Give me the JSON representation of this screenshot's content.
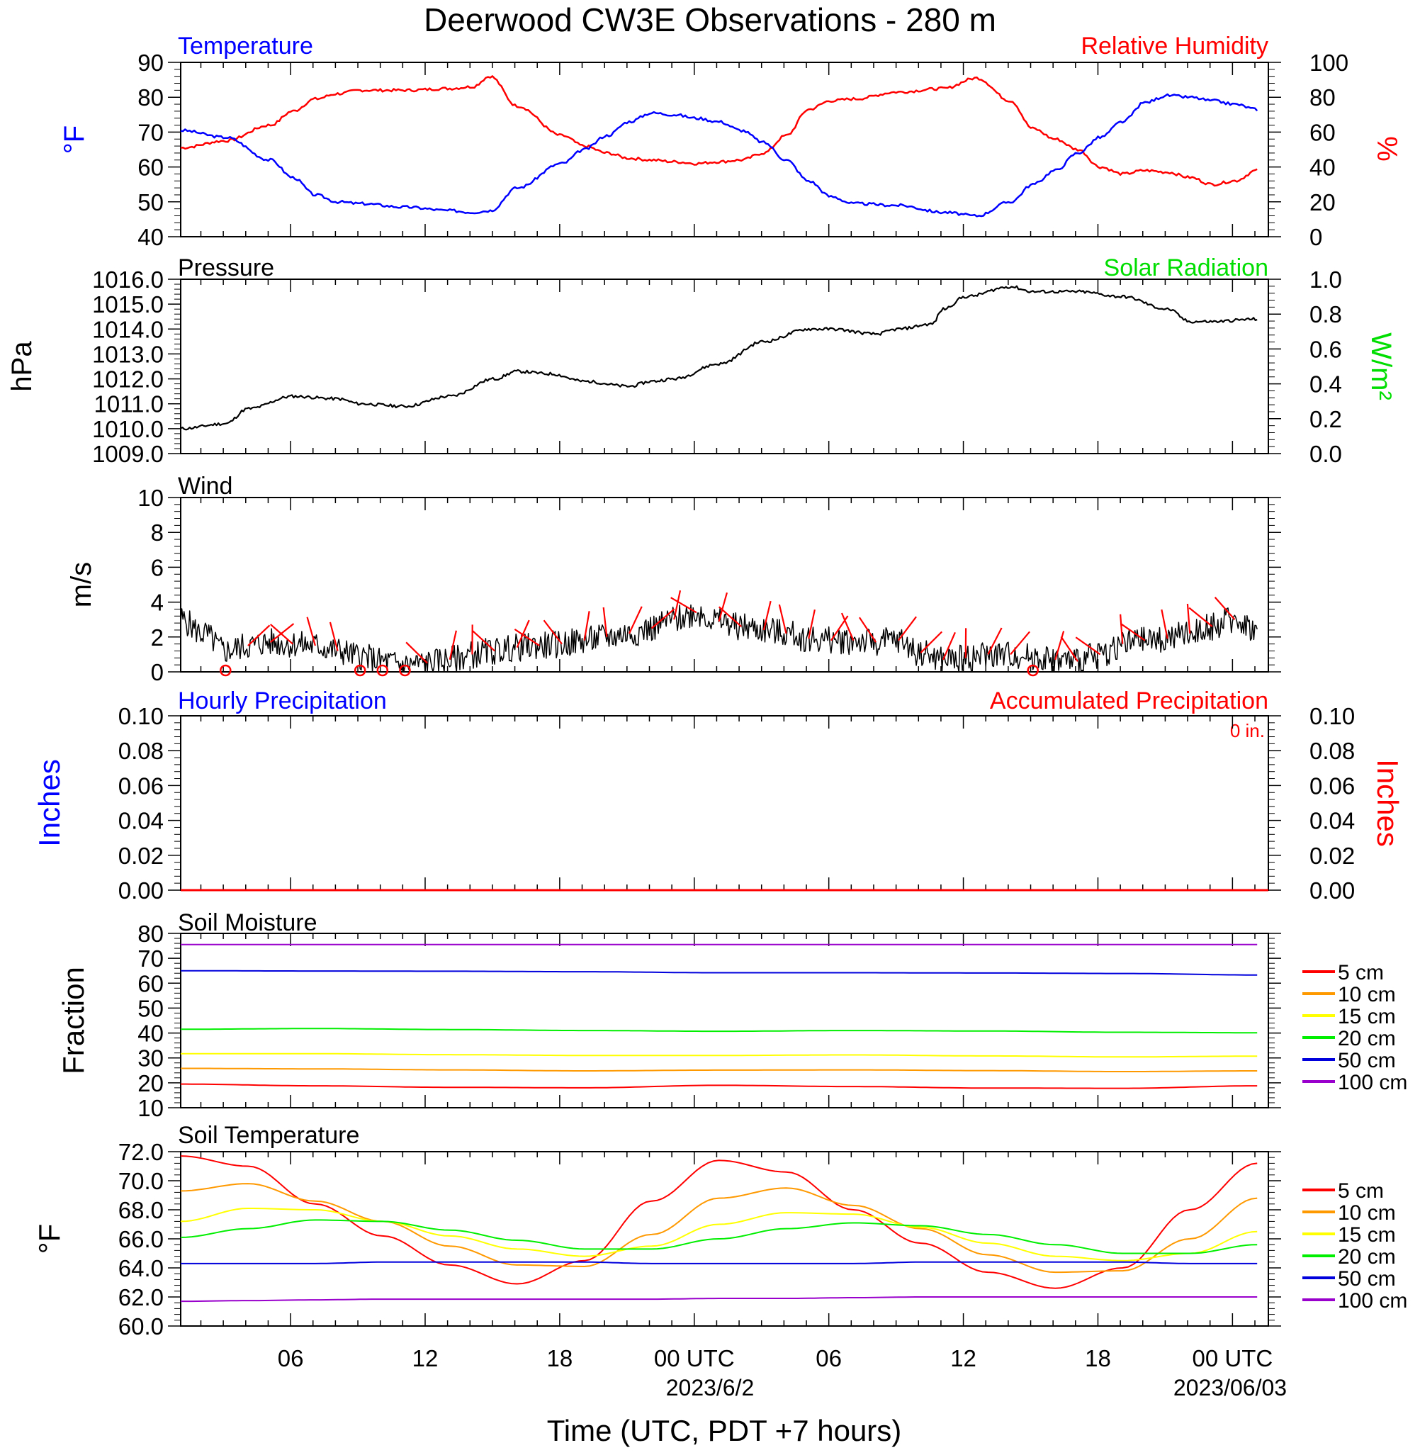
{
  "page": {
    "title": "Deerwood CW3E Observations - 280 m",
    "xlabel": "Time (UTC, PDT +7 hours)",
    "x_ticks": [
      "06",
      "12",
      "18",
      "00 UTC",
      "06",
      "12",
      "18",
      "00 UTC"
    ],
    "date_labels": [
      "2023/6/2",
      "2023/06/03"
    ]
  },
  "colors": {
    "temperature": "#0000ff",
    "humidity": "#ff0000",
    "solar": "#00dd00",
    "pressure": "#000000",
    "wind_barb": "#ff0000",
    "soil_5": "#ff0000",
    "soil_10": "#ff9900",
    "soil_15": "#ffff00",
    "soil_20": "#00ee00",
    "soil_50": "#0000dd",
    "soil_100": "#9900cc"
  },
  "chart_data": [
    {
      "type": "line",
      "panel": "temperature_humidity",
      "title_left": "Temperature",
      "title_right": "Relative Humidity",
      "ylabel_left": "°F",
      "ylabel_right": "%",
      "ylim_left": [
        40,
        90
      ],
      "ylim_right": [
        0,
        100
      ],
      "yticks_left": [
        "90",
        "80",
        "70",
        "60",
        "50",
        "40"
      ],
      "yticks_right": [
        "100",
        "80",
        "60",
        "40",
        "20",
        "0"
      ],
      "x_hours": [
        0,
        2,
        4,
        5,
        6,
        7,
        8,
        10,
        12,
        13,
        13.8,
        15,
        17,
        18,
        19,
        20,
        21,
        22,
        23,
        24,
        25,
        26,
        27,
        28,
        29,
        30,
        32,
        34,
        35.5,
        37,
        38,
        39,
        40,
        41,
        42,
        43,
        44,
        45,
        46,
        47,
        48
      ],
      "series": [
        {
          "name": "Temperature",
          "axis": "left",
          "values": [
            70.5,
            68.5,
            62,
            57,
            52,
            50,
            49.5,
            48.5,
            47.5,
            47,
            47.5,
            54,
            61,
            65,
            69,
            73,
            75.5,
            75,
            74,
            73,
            70.5,
            67,
            62,
            56,
            51.5,
            49.5,
            49,
            47,
            46,
            50,
            55,
            59,
            64,
            68.5,
            73,
            78.5,
            80.5,
            80,
            79,
            78,
            76.5
          ]
        },
        {
          "name": "Relative Humidity",
          "axis": "right",
          "values": [
            51,
            55,
            64,
            72,
            79,
            82,
            84,
            84,
            85,
            86,
            92,
            75,
            58,
            52,
            48,
            45,
            44,
            43,
            42,
            43,
            44,
            48,
            58,
            73,
            78,
            79,
            83,
            85,
            91,
            78,
            62,
            56,
            50,
            40,
            36,
            38,
            37,
            34,
            30,
            32,
            38
          ]
        }
      ]
    },
    {
      "type": "line",
      "panel": "pressure_solar",
      "title_left": "Pressure",
      "title_right": "Solar Radiation",
      "ylabel_left": "hPa",
      "ylabel_right": "W/m²",
      "ylim_left": [
        1009.0,
        1016.0
      ],
      "ylim_right": [
        0.0,
        1.0
      ],
      "yticks_left": [
        "1016.0",
        "1015.0",
        "1014.0",
        "1013.0",
        "1012.0",
        "1011.0",
        "1010.0",
        "1009.0"
      ],
      "yticks_right": [
        "1.0",
        "0.8",
        "0.6",
        "0.4",
        "0.2",
        "0.0"
      ],
      "x_hours": [
        0,
        2,
        3,
        5,
        7,
        8,
        10,
        12,
        14,
        15,
        16.5,
        18,
        20,
        21,
        22,
        24,
        26,
        28,
        29,
        31,
        32,
        33.5,
        34,
        35,
        37,
        38,
        40,
        42,
        44,
        45,
        46,
        48
      ],
      "series": [
        {
          "name": "Pressure",
          "axis": "left",
          "values": [
            1010.0,
            1010.2,
            1010.8,
            1011.3,
            1011.2,
            1011.0,
            1010.9,
            1011.3,
            1012.0,
            1012.3,
            1012.2,
            1011.9,
            1011.7,
            1011.9,
            1012.0,
            1012.6,
            1013.5,
            1014.0,
            1014.0,
            1013.8,
            1014.0,
            1014.2,
            1014.8,
            1015.3,
            1015.7,
            1015.5,
            1015.5,
            1015.3,
            1014.8,
            1014.3,
            1014.3,
            1014.4
          ]
        }
      ]
    },
    {
      "type": "line",
      "panel": "wind",
      "title_left": "Wind",
      "ylabel_left": "m/s",
      "ylim_left": [
        0,
        10
      ],
      "yticks_left": [
        "10",
        "8",
        "6",
        "4",
        "2",
        "0"
      ],
      "x_hours": [
        0,
        1,
        2,
        3,
        4,
        5,
        6,
        7,
        8,
        9,
        10,
        11,
        12,
        13,
        14,
        15,
        16,
        17,
        18,
        19,
        20,
        21,
        22,
        23,
        24,
        25,
        26,
        27,
        28,
        29,
        30,
        31,
        32,
        33,
        34,
        35,
        36,
        37,
        38,
        39,
        40,
        41,
        42,
        43,
        44,
        45,
        46,
        47,
        48
      ],
      "series": [
        {
          "name": "Wind speed",
          "axis": "left",
          "values": [
            3,
            2.2,
            1.2,
            1.5,
            1.7,
            1.6,
            1.5,
            1.2,
            0.9,
            0.6,
            0.4,
            0.5,
            0.7,
            1.0,
            1.2,
            1.4,
            1.5,
            1.6,
            1.8,
            2.0,
            2.2,
            2.5,
            3.0,
            3.4,
            2.9,
            2.6,
            2.4,
            2.2,
            1.9,
            1.8,
            1.8,
            1.7,
            1.8,
            1.1,
            0.7,
            0.8,
            1.0,
            1.0,
            0.9,
            0.7,
            0.6,
            1.0,
            1.6,
            1.8,
            1.9,
            2.2,
            2.6,
            3.0,
            2.4
          ]
        }
      ],
      "calm_hours": [
        2,
        8,
        9,
        10,
        38
      ]
    },
    {
      "type": "line",
      "panel": "precipitation",
      "title_left": "Hourly Precipitation",
      "title_right": "Accumulated Precipitation",
      "total_label": "0 in.",
      "ylabel_left": "Inches",
      "ylabel_right": "Inches",
      "ylim_left": [
        0.0,
        0.1
      ],
      "ylim_right": [
        0.0,
        0.1
      ],
      "yticks_left": [
        "0.10",
        "0.08",
        "0.06",
        "0.04",
        "0.02",
        "0.00"
      ],
      "yticks_right": [
        "0.10",
        "0.08",
        "0.06",
        "0.04",
        "0.02",
        "0.00"
      ],
      "x_hours": [
        0,
        48
      ],
      "series": [
        {
          "name": "Accumulated Precipitation",
          "axis": "right",
          "values": [
            0,
            0
          ]
        }
      ]
    },
    {
      "type": "line",
      "panel": "soil_moisture",
      "title_left": "Soil Moisture",
      "ylabel_left": "Fraction",
      "ylim_left": [
        10,
        80
      ],
      "yticks_left": [
        "80",
        "70",
        "60",
        "50",
        "40",
        "30",
        "20",
        "10"
      ],
      "x_hours": [
        0,
        6,
        12,
        18,
        24,
        30,
        36,
        42,
        48
      ],
      "series": [
        {
          "name": "5 cm",
          "values": [
            19.5,
            18.8,
            18.2,
            18.0,
            19.0,
            18.5,
            17.9,
            17.8,
            18.8
          ]
        },
        {
          "name": "10 cm",
          "values": [
            25.8,
            25.6,
            25.2,
            24.8,
            25.1,
            25.2,
            24.9,
            24.5,
            24.8
          ]
        },
        {
          "name": "15 cm",
          "values": [
            31.7,
            31.7,
            31.3,
            31.0,
            31.0,
            31.2,
            30.8,
            30.4,
            30.7
          ]
        },
        {
          "name": "20 cm",
          "values": [
            41.5,
            41.8,
            41.4,
            41.0,
            40.7,
            41.0,
            40.8,
            40.3,
            40.1
          ]
        },
        {
          "name": "50 cm",
          "values": [
            65.0,
            64.9,
            64.8,
            64.6,
            64.2,
            64.2,
            64.1,
            63.9,
            63.3
          ]
        },
        {
          "name": "100 cm",
          "values": [
            75.5,
            75.5,
            75.5,
            75.5,
            75.5,
            75.5,
            75.5,
            75.5,
            75.5
          ]
        }
      ]
    },
    {
      "type": "line",
      "panel": "soil_temperature",
      "title_left": "Soil Temperature",
      "ylabel_left": "°F",
      "ylim_left": [
        60.0,
        72.0
      ],
      "yticks_left": [
        "72.0",
        "70.0",
        "68.0",
        "66.0",
        "64.0",
        "62.0",
        "60.0"
      ],
      "x_hours": [
        0,
        3,
        6,
        9,
        12,
        15,
        18,
        21,
        24,
        27,
        30,
        33,
        36,
        39,
        42,
        45,
        48
      ],
      "series": [
        {
          "name": "5 cm",
          "values": [
            71.7,
            71.0,
            68.4,
            66.2,
            64.2,
            62.9,
            64.5,
            68.6,
            71.4,
            70.6,
            68.0,
            65.7,
            63.7,
            62.6,
            64.0,
            68.0,
            71.2
          ]
        },
        {
          "name": "10 cm",
          "values": [
            69.3,
            69.8,
            68.6,
            67.2,
            65.5,
            64.2,
            64.1,
            66.3,
            68.8,
            69.5,
            68.3,
            66.7,
            64.9,
            63.7,
            63.8,
            66.0,
            68.8
          ]
        },
        {
          "name": "15 cm",
          "values": [
            67.2,
            68.1,
            68.0,
            67.2,
            66.2,
            65.3,
            64.8,
            65.5,
            67.0,
            67.8,
            67.7,
            66.8,
            65.7,
            64.8,
            64.5,
            65.0,
            66.5
          ]
        },
        {
          "name": "20 cm",
          "values": [
            66.1,
            66.7,
            67.3,
            67.2,
            66.6,
            65.9,
            65.3,
            65.3,
            66.0,
            66.7,
            67.1,
            66.9,
            66.3,
            65.6,
            65.0,
            65.0,
            65.6
          ]
        },
        {
          "name": "50 cm",
          "values": [
            64.3,
            64.3,
            64.3,
            64.4,
            64.4,
            64.4,
            64.4,
            64.3,
            64.3,
            64.3,
            64.3,
            64.4,
            64.4,
            64.4,
            64.4,
            64.3,
            64.3
          ]
        },
        {
          "name": "100 cm",
          "values": [
            61.7,
            61.75,
            61.8,
            61.85,
            61.85,
            61.85,
            61.85,
            61.85,
            61.9,
            61.9,
            61.95,
            62.0,
            62.0,
            62.0,
            62.0,
            62.0,
            62.0
          ]
        }
      ]
    }
  ]
}
